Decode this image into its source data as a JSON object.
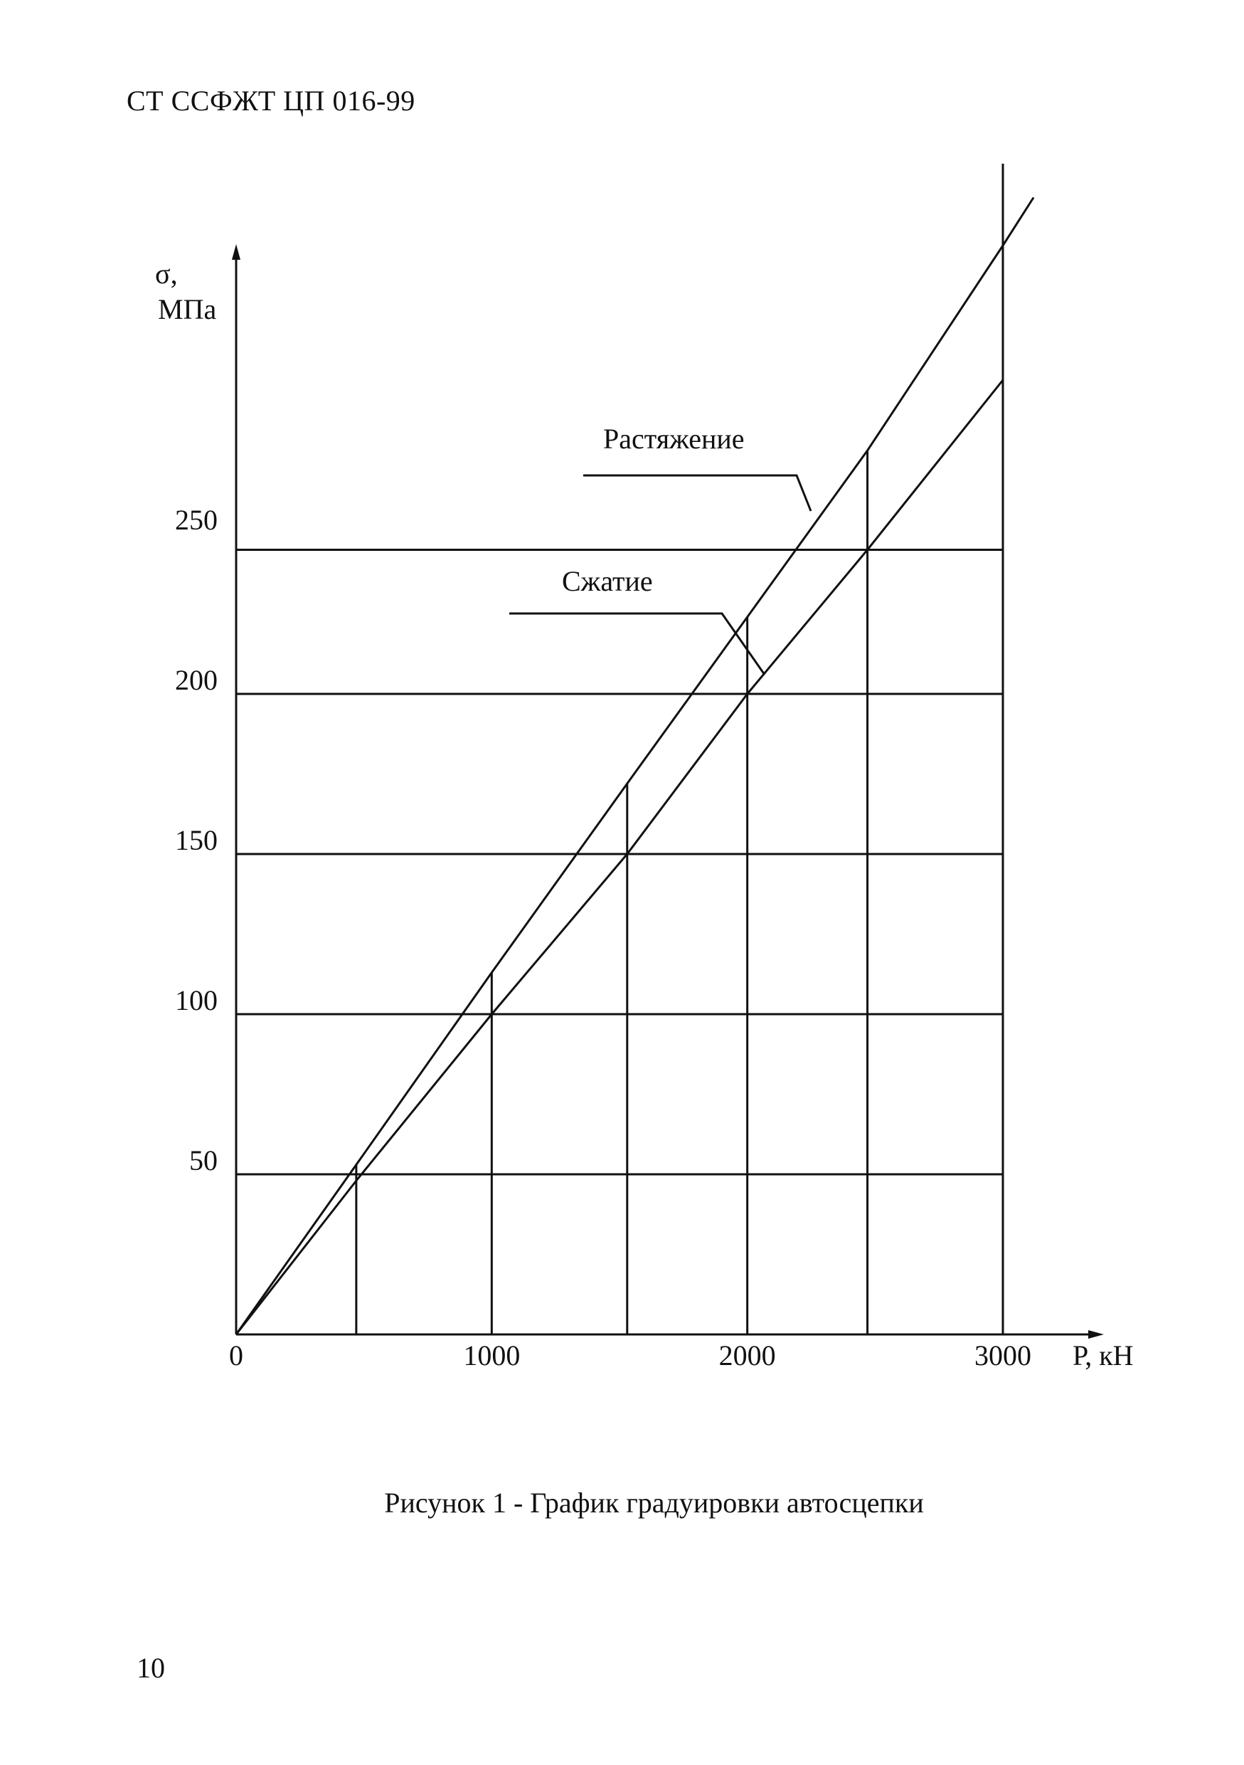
{
  "document": {
    "header": "СТ ССФЖТ ЦП 016-99",
    "caption": "Рисунок 1 - График градуировки автосцепки",
    "page_number": "10"
  },
  "chart_data": {
    "type": "line",
    "title": "",
    "xlabel": "Р, кН",
    "ylabel_symbol": "σ,",
    "ylabel_unit": "МПа",
    "x_ticks": [
      "0",
      "1000",
      "2000",
      "3000"
    ],
    "y_ticks": [
      "50",
      "100",
      "150",
      "200",
      "250"
    ],
    "xlim": [
      0,
      3000
    ],
    "ylim": [
      0,
      350
    ],
    "grid": true,
    "gridlines_y": [
      50,
      100,
      150,
      200,
      245
    ],
    "gridlines_x": [
      470,
      1000,
      1530,
      2000,
      2470,
      3000
    ],
    "series": [
      {
        "name": "Растяжение",
        "x": [
          0,
          470,
          1000,
          1530,
          2000,
          2470,
          3000,
          3120
        ],
        "y": [
          0,
          53,
          113,
          172,
          224,
          276,
          340,
          355
        ]
      },
      {
        "name": "Сжатие",
        "x": [
          0,
          470,
          1000,
          1530,
          2000,
          2470,
          3000
        ],
        "y": [
          0,
          48,
          100,
          150,
          200,
          245,
          298
        ]
      }
    ],
    "colors": {
      "line": "#111111",
      "background": "#ffffff"
    }
  }
}
